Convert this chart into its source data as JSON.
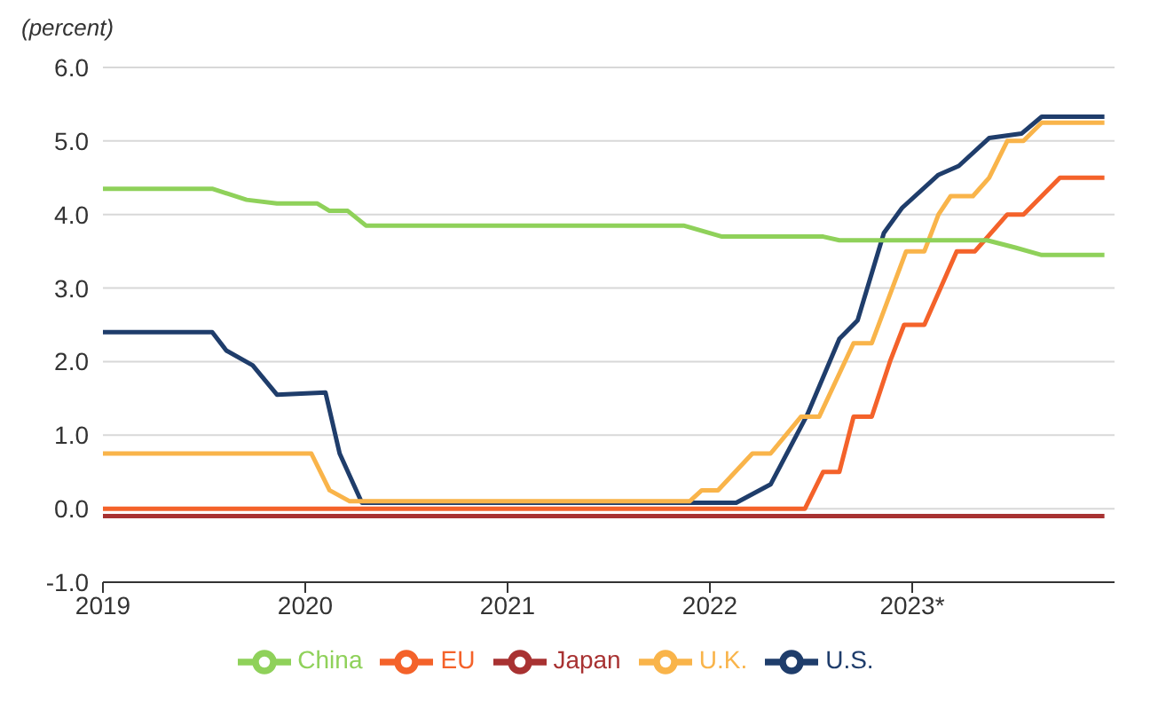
{
  "chart_data": {
    "type": "line",
    "ylabel": "(percent)",
    "xlim": [
      2019,
      2024
    ],
    "xticks": [
      2019,
      2020,
      2021,
      2022,
      {
        "value": 2023,
        "label": "2023*"
      }
    ],
    "ylim": [
      -1,
      6
    ],
    "yticks": [
      {
        "value": -1,
        "label": "-1.0"
      },
      {
        "value": 0,
        "label": "0.0"
      },
      {
        "value": 1,
        "label": "1.0"
      },
      {
        "value": 2,
        "label": "2.0"
      },
      {
        "value": 3,
        "label": "3.0"
      },
      {
        "value": 4,
        "label": "4.0"
      },
      {
        "value": 5,
        "label": "5.0"
      },
      {
        "value": 6,
        "label": "6.0"
      }
    ],
    "grid": "y",
    "legend": "bottom",
    "marker": "none",
    "line_style": "solid",
    "series": [
      {
        "name": "U.S.",
        "color": "#1f3d6b",
        "x": [
          2019,
          2019.54,
          2019.61,
          2019.74,
          2019.86,
          2020.1,
          2020.17,
          2020.28,
          2022.13,
          2022.3,
          2022.48,
          2022.64,
          2022.73,
          2022.86,
          2022.95,
          2023.13,
          2023.23,
          2023.38,
          2023.54,
          2023.64,
          2023.95
        ],
        "values": [
          2.4,
          2.4,
          2.15,
          1.95,
          1.55,
          1.58,
          0.75,
          0.08,
          0.08,
          0.33,
          1.27,
          2.31,
          2.56,
          3.75,
          4.09,
          4.54,
          4.66,
          5.04,
          5.1,
          5.33,
          5.33
        ]
      },
      {
        "name": "EU",
        "color": "#f4622a",
        "x": [
          2019,
          2022.47,
          2022.56,
          2022.64,
          2022.71,
          2022.8,
          2022.89,
          2022.96,
          2023.06,
          2023.22,
          2023.31,
          2023.47,
          2023.55,
          2023.73,
          2023.95
        ],
        "values": [
          0,
          0,
          0.5,
          0.5,
          1.25,
          1.25,
          2.0,
          2.5,
          2.5,
          3.5,
          3.5,
          4.0,
          4.0,
          4.5,
          4.5
        ]
      },
      {
        "name": "U.K.",
        "color": "#f9b44a",
        "x": [
          2019,
          2020.03,
          2020.12,
          2020.22,
          2021.9,
          2021.96,
          2022.04,
          2022.21,
          2022.3,
          2022.45,
          2022.54,
          2022.71,
          2022.8,
          2022.97,
          2023.06,
          2023.13,
          2023.19,
          2023.3,
          2023.38,
          2023.47,
          2023.55,
          2023.64,
          2023.95
        ],
        "values": [
          0.75,
          0.75,
          0.25,
          0.1,
          0.1,
          0.25,
          0.25,
          0.75,
          0.75,
          1.25,
          1.25,
          2.25,
          2.25,
          3.5,
          3.5,
          4.0,
          4.25,
          4.25,
          4.5,
          5.0,
          5.0,
          5.25,
          5.25
        ]
      },
      {
        "name": "China",
        "color": "#8fd15a",
        "x": [
          2019,
          2019.54,
          2019.71,
          2019.86,
          2020.06,
          2020.12,
          2020.21,
          2020.3,
          2021.87,
          2022.06,
          2022.56,
          2022.64,
          2023.37,
          2023.51,
          2023.64,
          2023.95
        ],
        "values": [
          4.35,
          4.35,
          4.2,
          4.15,
          4.15,
          4.05,
          4.05,
          3.85,
          3.85,
          3.7,
          3.7,
          3.65,
          3.65,
          3.55,
          3.45,
          3.45
        ]
      },
      {
        "name": "Japan",
        "color": "#a83232",
        "x": [
          2019,
          2023.95
        ],
        "values": [
          -0.1,
          -0.1
        ]
      }
    ]
  }
}
